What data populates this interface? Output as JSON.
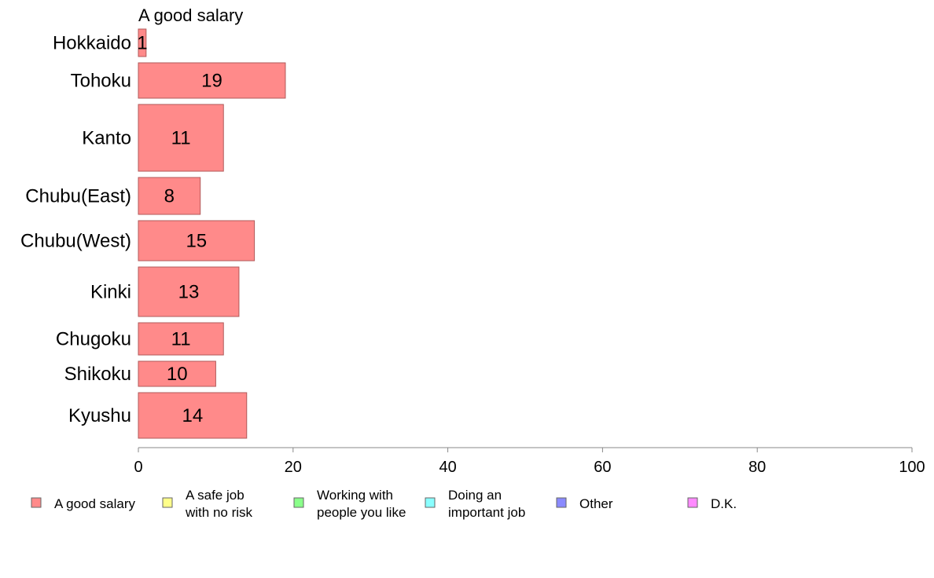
{
  "chart_data": {
    "type": "bar",
    "orientation": "horizontal",
    "title": "A good salary",
    "categories": [
      "Hokkaido",
      "Tohoku",
      "Kanto",
      "Chubu(East)",
      "Chubu(West)",
      "Kinki",
      "Chugoku",
      "Shikoku",
      "Kyushu"
    ],
    "series": [
      {
        "name": "A good salary",
        "values": [
          1,
          19,
          11,
          8,
          15,
          13,
          11,
          10,
          14
        ],
        "color": "#ff8a8a"
      }
    ],
    "xlim": [
      0,
      100
    ],
    "xticks": [
      "0",
      "20",
      "40",
      "60",
      "80",
      "100"
    ],
    "grid": false,
    "legend": {
      "position": "bottom",
      "items": [
        {
          "lines": [
            "A good salary"
          ],
          "color": "#ff8a8a"
        },
        {
          "lines": [
            "A safe job",
            "with no risk"
          ],
          "color": "#ffff8a"
        },
        {
          "lines": [
            "Working with",
            "people you like"
          ],
          "color": "#8aff8a"
        },
        {
          "lines": [
            "Doing an",
            "important job"
          ],
          "color": "#8affff"
        },
        {
          "lines": [
            "Other"
          ],
          "color": "#8a8aff"
        },
        {
          "lines": [
            "D.K."
          ],
          "color": "#ff8aff"
        }
      ]
    }
  }
}
